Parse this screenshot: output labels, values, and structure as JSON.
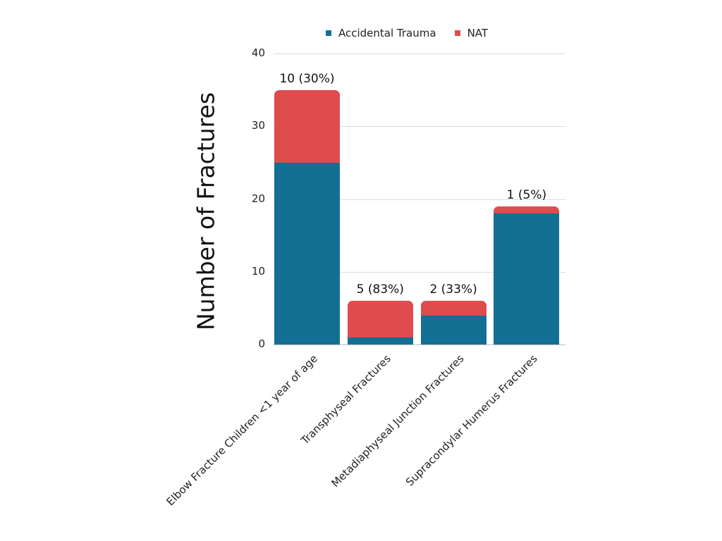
{
  "chart_data": {
    "type": "bar",
    "stacked": true,
    "title": "",
    "xlabel": "",
    "ylabel": "Number of Fractures",
    "ylim": [
      0,
      40
    ],
    "yticks": [
      0,
      10,
      20,
      30,
      40
    ],
    "grid": true,
    "legend_position": "top",
    "categories": [
      "Elbow Fracture Children <1 year of age",
      "Transphyseal Fractures",
      "Metadiaphyseal Junction Fractures",
      "Supracondylar Humerus Fractures"
    ],
    "series": [
      {
        "name": "Accidental Trauma",
        "color": "#136f93",
        "values": [
          25,
          1,
          4,
          18
        ]
      },
      {
        "name": "NAT",
        "color": "#e04c4e",
        "values": [
          10,
          5,
          2,
          1
        ]
      }
    ],
    "annotations": [
      "10 (30%)",
      "5 (83%)",
      "2 (33%)",
      "1 (5%)"
    ]
  },
  "legend": [
    {
      "label": "Accidental Trauma",
      "color": "#136f93"
    },
    {
      "label": "NAT",
      "color": "#e04c4e"
    }
  ],
  "axis": {
    "ylabel": "Number of Fractures"
  }
}
